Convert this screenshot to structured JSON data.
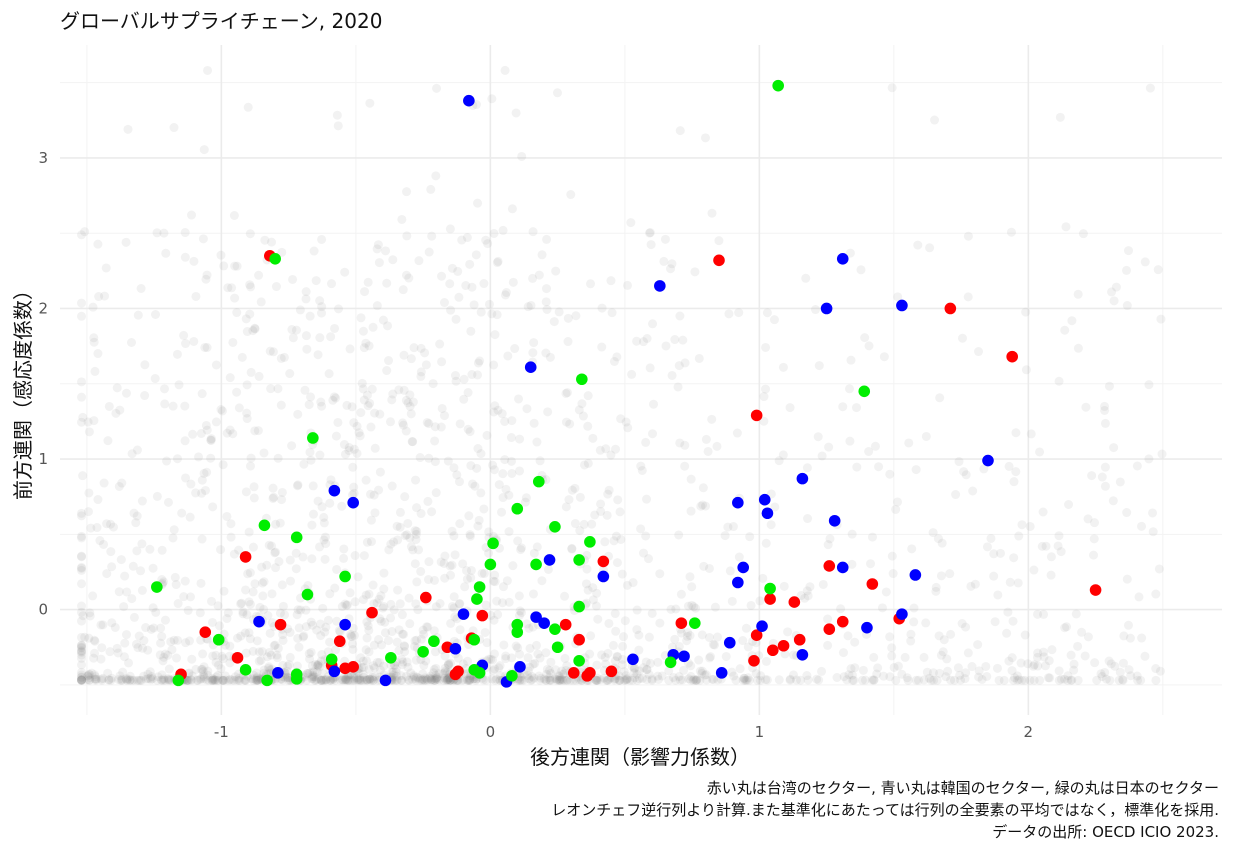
{
  "chart_data": {
    "type": "scatter",
    "title": "グローバルサプライチェーン, 2020",
    "xlabel": "後方連関（影響力係数）",
    "ylabel": "前方連関（感応度係数）",
    "xlim": [
      -1.6,
      2.72
    ],
    "ylim": [
      -0.7,
      3.75
    ],
    "x_ticks": [
      -1,
      0,
      1,
      2
    ],
    "x_tick_labels": [
      "-1",
      "0",
      "1",
      "2"
    ],
    "y_ticks": [
      0,
      1,
      2,
      3
    ],
    "y_tick_labels": [
      "0",
      "1",
      "2",
      "3"
    ],
    "grid": true,
    "caption": [
      "赤い丸は台湾のセクター,  青い丸は韓国のセクター,  緑の丸は日本のセクター",
      "レオンチェフ逆行列より計算.また基準化にあたっては行列の全要素の平均ではなく，標準化を採用.",
      "データの出所: OECD ICIO 2023."
    ],
    "colors": {
      "taiwan": "#ff0000",
      "korea": "#0000ff",
      "japan": "#00ee00",
      "other": "#808080",
      "grid": "#ebebeb"
    },
    "series": [
      {
        "country": "taiwan",
        "points": [
          [
            -0.82,
            2.35
          ],
          [
            0.85,
            2.32
          ],
          [
            1.71,
            2.0
          ],
          [
            1.94,
            1.68
          ],
          [
            0.99,
            1.29
          ],
          [
            -0.91,
            0.35
          ],
          [
            -0.24,
            0.08
          ],
          [
            0.42,
            0.32
          ],
          [
            1.26,
            0.29
          ],
          [
            1.42,
            0.17
          ],
          [
            2.25,
            0.13
          ],
          [
            1.04,
            0.07
          ],
          [
            1.13,
            0.05
          ],
          [
            -0.44,
            -0.02
          ],
          [
            -0.03,
            -0.04
          ],
          [
            1.52,
            -0.06
          ],
          [
            1.31,
            -0.08
          ],
          [
            0.71,
            -0.09
          ],
          [
            -0.78,
            -0.1
          ],
          [
            0.28,
            -0.1
          ],
          [
            1.26,
            -0.13
          ],
          [
            -1.06,
            -0.15
          ],
          [
            0.99,
            -0.17
          ],
          [
            -0.07,
            -0.19
          ],
          [
            0.33,
            -0.2
          ],
          [
            1.15,
            -0.2
          ],
          [
            -0.56,
            -0.21
          ],
          [
            1.09,
            -0.24
          ],
          [
            -0.16,
            -0.25
          ],
          [
            1.05,
            -0.27
          ],
          [
            -0.94,
            -0.32
          ],
          [
            0.98,
            -0.34
          ],
          [
            -0.59,
            -0.37
          ],
          [
            -0.51,
            -0.38
          ],
          [
            -0.54,
            -0.39
          ],
          [
            -0.12,
            -0.41
          ],
          [
            0.31,
            -0.42
          ],
          [
            0.37,
            -0.42
          ],
          [
            0.45,
            -0.41
          ],
          [
            -0.13,
            -0.43
          ],
          [
            0.36,
            -0.44
          ],
          [
            -1.15,
            -0.43
          ]
        ]
      },
      {
        "country": "korea",
        "points": [
          [
            -0.08,
            3.38
          ],
          [
            1.31,
            2.33
          ],
          [
            0.63,
            2.15
          ],
          [
            1.53,
            2.02
          ],
          [
            1.25,
            2.0
          ],
          [
            0.15,
            1.61
          ],
          [
            1.85,
            0.99
          ],
          [
            1.16,
            0.87
          ],
          [
            -0.58,
            0.79
          ],
          [
            -0.51,
            0.71
          ],
          [
            0.92,
            0.71
          ],
          [
            1.02,
            0.73
          ],
          [
            1.03,
            0.64
          ],
          [
            1.28,
            0.59
          ],
          [
            0.22,
            0.33
          ],
          [
            0.42,
            0.22
          ],
          [
            1.58,
            0.23
          ],
          [
            0.94,
            0.28
          ],
          [
            1.31,
            0.28
          ],
          [
            0.92,
            0.18
          ],
          [
            1.53,
            -0.03
          ],
          [
            -0.1,
            -0.03
          ],
          [
            -0.86,
            -0.08
          ],
          [
            0.17,
            -0.05
          ],
          [
            0.2,
            -0.09
          ],
          [
            -0.54,
            -0.1
          ],
          [
            1.01,
            -0.11
          ],
          [
            1.4,
            -0.12
          ],
          [
            0.89,
            -0.22
          ],
          [
            -0.13,
            -0.26
          ],
          [
            0.68,
            -0.3
          ],
          [
            0.72,
            -0.31
          ],
          [
            1.16,
            -0.3
          ],
          [
            0.53,
            -0.33
          ],
          [
            -0.03,
            -0.37
          ],
          [
            0.11,
            -0.38
          ],
          [
            -0.58,
            -0.41
          ],
          [
            -0.79,
            -0.42
          ],
          [
            0.86,
            -0.42
          ],
          [
            -0.39,
            -0.47
          ],
          [
            0.06,
            -0.48
          ]
        ]
      },
      {
        "country": "japan",
        "points": [
          [
            1.07,
            3.48
          ],
          [
            -0.8,
            2.33
          ],
          [
            0.34,
            1.53
          ],
          [
            1.39,
            1.45
          ],
          [
            -0.66,
            1.14
          ],
          [
            0.18,
            0.85
          ],
          [
            0.1,
            0.67
          ],
          [
            -0.84,
            0.56
          ],
          [
            0.24,
            0.55
          ],
          [
            -0.72,
            0.48
          ],
          [
            0.37,
            0.45
          ],
          [
            0.01,
            0.44
          ],
          [
            0.33,
            0.33
          ],
          [
            0.0,
            0.3
          ],
          [
            0.17,
            0.3
          ],
          [
            -0.54,
            0.22
          ],
          [
            -1.24,
            0.15
          ],
          [
            -0.04,
            0.15
          ],
          [
            1.04,
            0.14
          ],
          [
            -0.68,
            0.1
          ],
          [
            -0.05,
            0.07
          ],
          [
            0.33,
            0.02
          ],
          [
            0.1,
            -0.1
          ],
          [
            0.76,
            -0.09
          ],
          [
            0.24,
            -0.13
          ],
          [
            0.1,
            -0.15
          ],
          [
            -1.01,
            -0.2
          ],
          [
            -0.21,
            -0.21
          ],
          [
            -0.06,
            -0.2
          ],
          [
            0.25,
            -0.25
          ],
          [
            -0.25,
            -0.28
          ],
          [
            -0.37,
            -0.32
          ],
          [
            0.33,
            -0.34
          ],
          [
            -0.59,
            -0.33
          ],
          [
            0.67,
            -0.35
          ],
          [
            -0.06,
            -0.4
          ],
          [
            -0.91,
            -0.4
          ],
          [
            -0.04,
            -0.42
          ],
          [
            -0.72,
            -0.43
          ],
          [
            -0.72,
            -0.46
          ],
          [
            -1.16,
            -0.47
          ],
          [
            -0.83,
            -0.47
          ],
          [
            0.08,
            -0.44
          ]
        ]
      }
    ],
    "background_points_note": "",
    "background_points_count": 2200
  }
}
